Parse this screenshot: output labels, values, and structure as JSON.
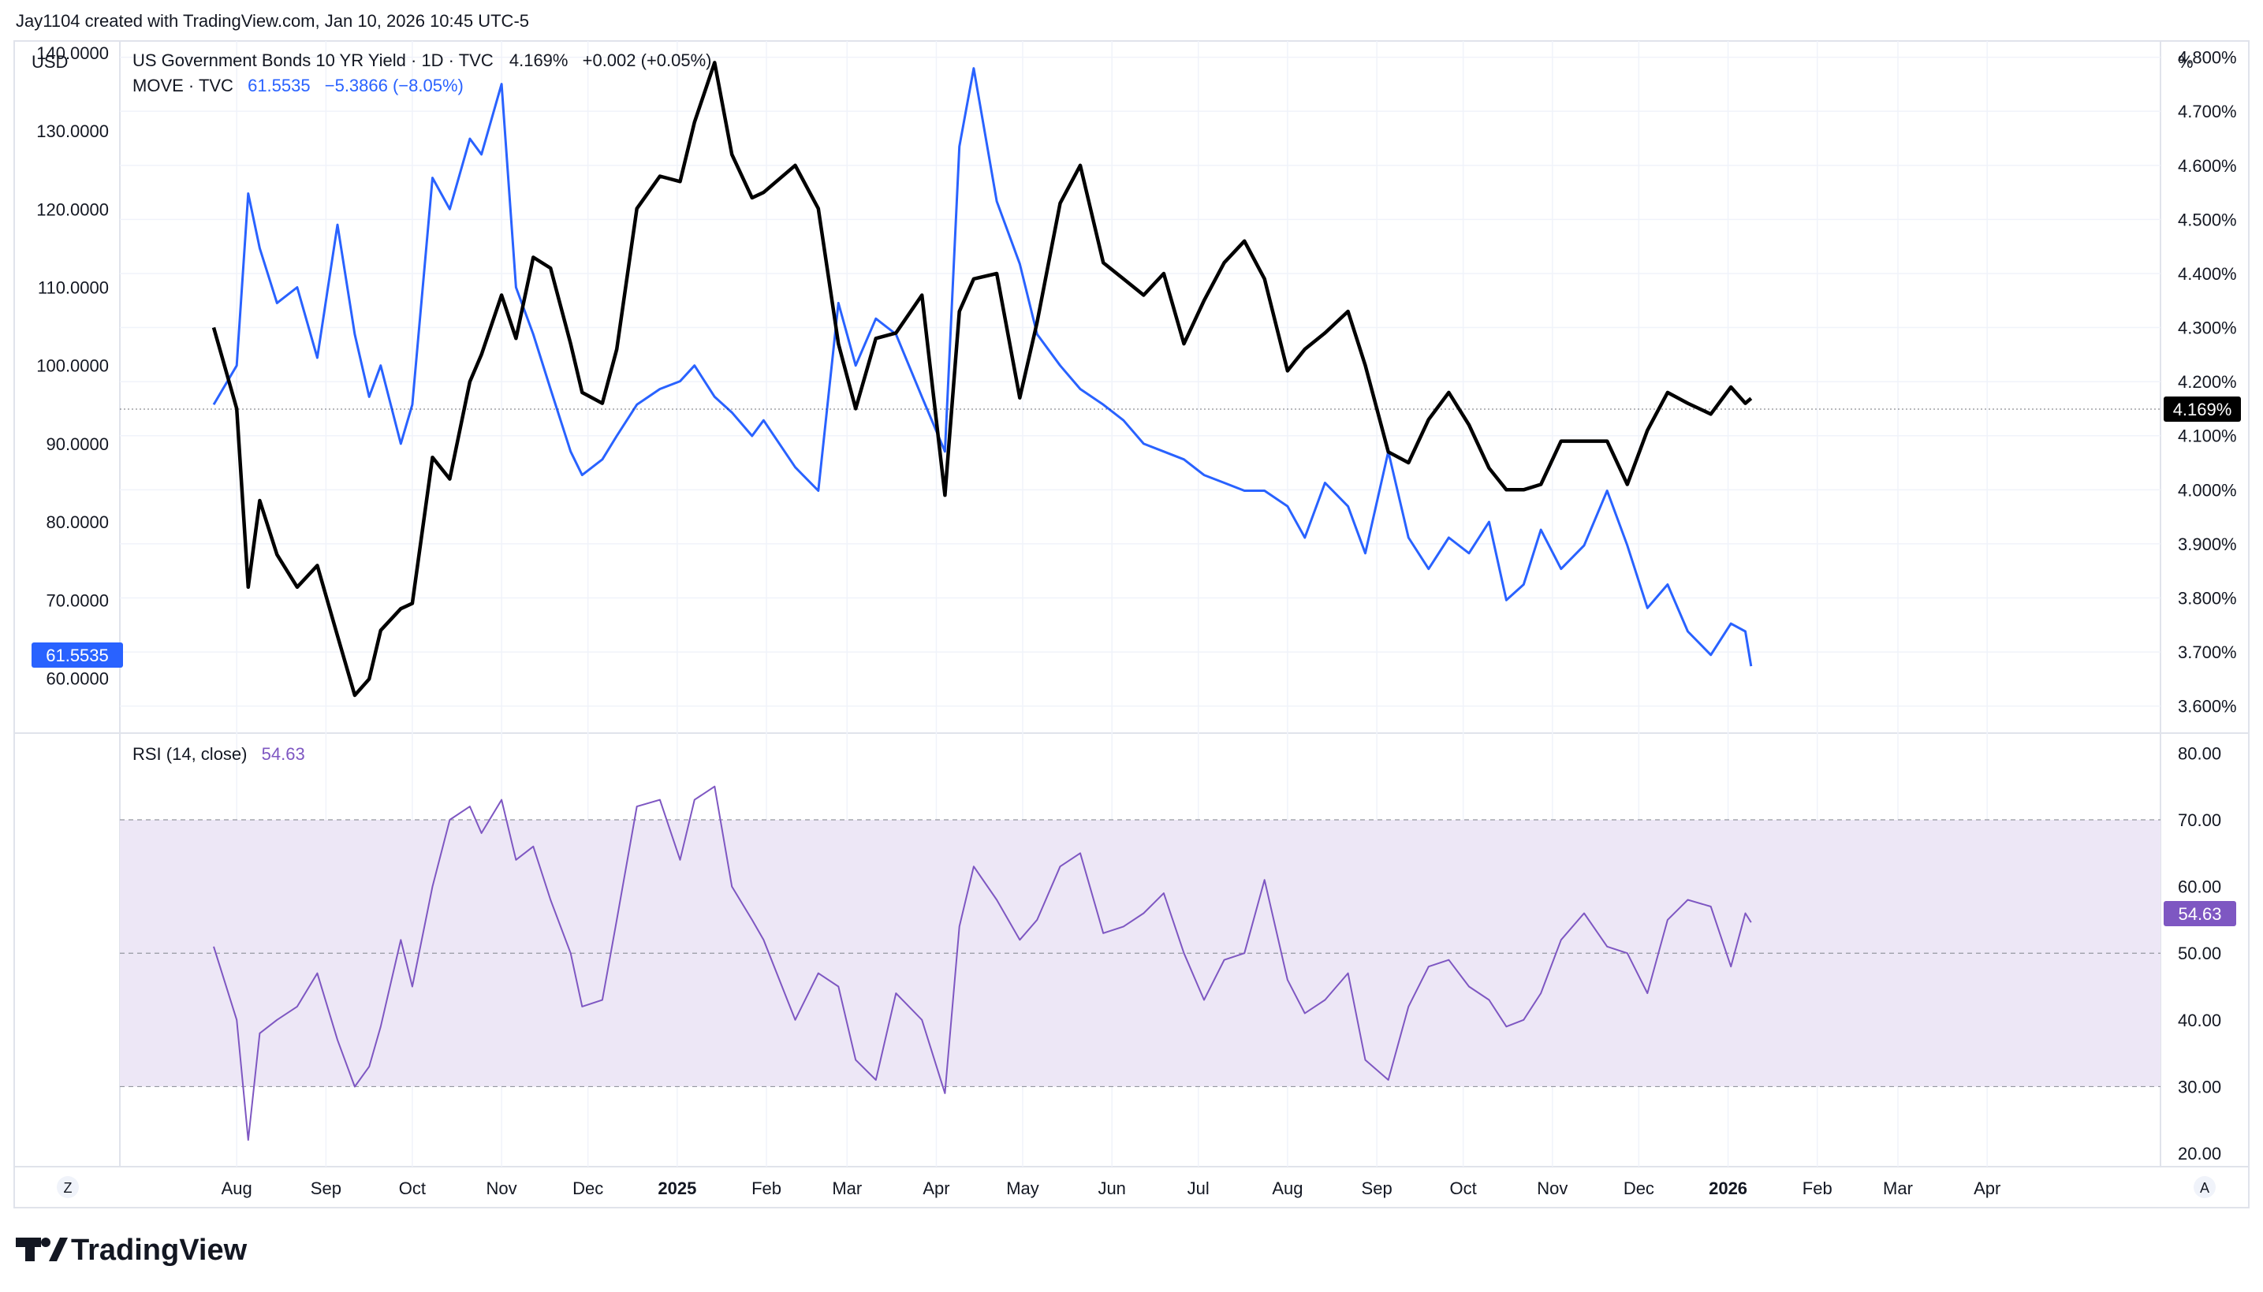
{
  "header": {
    "attribution": "Jay1104 created with TradingView.com, Jan 10, 2026 10:45 UTC-5"
  },
  "left_scale_label": "USD",
  "right_scale_label": "%",
  "legend": {
    "line1": {
      "symbol": "US Government Bonds 10 YR Yield · 1D · TVC",
      "last": "4.169%",
      "change": "+0.002 (+0.05%)"
    },
    "line2": {
      "symbol": "MOVE · TVC",
      "last": "61.5535",
      "change": "−5.3866 (−8.05%)"
    }
  },
  "rsi_legend": {
    "label": "RSI (14, close)",
    "value": "54.63"
  },
  "badges": {
    "move": "61.5535",
    "yield": "4.169%",
    "rsi": "54.63"
  },
  "bottom_buttons": {
    "left": "Z",
    "right": "A"
  },
  "logo_text": "TradingView",
  "colors": {
    "yield": "#000000",
    "move": "#2962ff",
    "rsi": "#7e57c2",
    "rsi_band": "#ede7f6",
    "grid": "#f0f3fa",
    "axis_text": "#131722"
  },
  "chart_data": [
    {
      "type": "line",
      "title": "US Government Bonds 10 YR Yield · 1D · TVC",
      "ylabel": "%",
      "ylim": [
        3.55,
        4.83
      ],
      "y_ticks": [
        "4.800%",
        "4.700%",
        "4.600%",
        "4.500%",
        "4.400%",
        "4.300%",
        "4.200%",
        "4.100%",
        "4.000%",
        "3.900%",
        "3.800%",
        "3.700%",
        "3.600%"
      ],
      "x_ticks": [
        "Aug",
        "Sep",
        "Oct",
        "Nov",
        "Dec",
        "2025",
        "Feb",
        "Mar",
        "Apr",
        "May",
        "Jun",
        "Jul",
        "Aug",
        "Sep",
        "Oct",
        "Nov",
        "Dec",
        "2026",
        "Feb",
        "Mar",
        "Apr"
      ],
      "series": [
        {
          "name": "US Government Bonds 10 YR Yield",
          "x": [
            "2024-07-24",
            "2024-08-01",
            "2024-08-05",
            "2024-08-09",
            "2024-08-15",
            "2024-08-22",
            "2024-08-29",
            "2024-09-05",
            "2024-09-11",
            "2024-09-16",
            "2024-09-20",
            "2024-09-27",
            "2024-10-01",
            "2024-10-08",
            "2024-10-14",
            "2024-10-21",
            "2024-10-25",
            "2024-11-01",
            "2024-11-06",
            "2024-11-12",
            "2024-11-18",
            "2024-11-25",
            "2024-11-29",
            "2024-12-06",
            "2024-12-11",
            "2024-12-18",
            "2024-12-26",
            "2025-01-02",
            "2025-01-07",
            "2025-01-14",
            "2025-01-20",
            "2025-01-27",
            "2025-01-31",
            "2025-02-11",
            "2025-02-19",
            "2025-02-26",
            "2025-03-04",
            "2025-03-11",
            "2025-03-18",
            "2025-03-27",
            "2025-04-04",
            "2025-04-09",
            "2025-04-14",
            "2025-04-22",
            "2025-04-30",
            "2025-05-06",
            "2025-05-14",
            "2025-05-21",
            "2025-05-29",
            "2025-06-05",
            "2025-06-12",
            "2025-06-19",
            "2025-06-26",
            "2025-07-03",
            "2025-07-10",
            "2025-07-17",
            "2025-07-24",
            "2025-08-01",
            "2025-08-07",
            "2025-08-14",
            "2025-08-22",
            "2025-08-28",
            "2025-09-05",
            "2025-09-12",
            "2025-09-19",
            "2025-09-26",
            "2025-10-03",
            "2025-10-10",
            "2025-10-16",
            "2025-10-22",
            "2025-10-28",
            "2025-11-04",
            "2025-11-12",
            "2025-11-20",
            "2025-11-27",
            "2025-12-04",
            "2025-12-11",
            "2025-12-18",
            "2025-12-26",
            "2026-01-02",
            "2026-01-07",
            "2026-01-09"
          ],
          "y": [
            4.3,
            4.15,
            3.82,
            3.98,
            3.88,
            3.82,
            3.86,
            3.73,
            3.62,
            3.65,
            3.74,
            3.78,
            3.79,
            4.06,
            4.02,
            4.2,
            4.25,
            4.36,
            4.28,
            4.43,
            4.41,
            4.27,
            4.18,
            4.16,
            4.26,
            4.52,
            4.58,
            4.57,
            4.68,
            4.79,
            4.62,
            4.54,
            4.55,
            4.6,
            4.52,
            4.27,
            4.15,
            4.28,
            4.29,
            4.36,
            3.99,
            4.33,
            4.39,
            4.4,
            4.17,
            4.31,
            4.53,
            4.6,
            4.42,
            4.39,
            4.36,
            4.4,
            4.27,
            4.35,
            4.42,
            4.46,
            4.39,
            4.22,
            4.26,
            4.29,
            4.33,
            4.23,
            4.07,
            4.05,
            4.13,
            4.18,
            4.12,
            4.04,
            4.0,
            4.0,
            4.01,
            4.09,
            4.09,
            4.09,
            4.01,
            4.11,
            4.18,
            4.16,
            4.14,
            4.19,
            4.16,
            4.169
          ]
        }
      ]
    },
    {
      "type": "line",
      "title": "MOVE · TVC",
      "ylabel": "USD",
      "ylim": [
        53,
        141.5
      ],
      "y_ticks": [
        "140.0000",
        "130.0000",
        "120.0000",
        "110.0000",
        "100.0000",
        "90.0000",
        "80.0000",
        "70.0000",
        "60.0000"
      ],
      "series": [
        {
          "name": "MOVE",
          "x": [
            "2024-07-24",
            "2024-08-01",
            "2024-08-05",
            "2024-08-09",
            "2024-08-15",
            "2024-08-22",
            "2024-08-29",
            "2024-09-05",
            "2024-09-11",
            "2024-09-16",
            "2024-09-20",
            "2024-09-27",
            "2024-10-01",
            "2024-10-08",
            "2024-10-14",
            "2024-10-21",
            "2024-10-25",
            "2024-11-01",
            "2024-11-06",
            "2024-11-12",
            "2024-11-18",
            "2024-11-25",
            "2024-11-29",
            "2024-12-06",
            "2024-12-11",
            "2024-12-18",
            "2024-12-26",
            "2025-01-02",
            "2025-01-07",
            "2025-01-14",
            "2025-01-20",
            "2025-01-27",
            "2025-01-31",
            "2025-02-11",
            "2025-02-19",
            "2025-02-26",
            "2025-03-04",
            "2025-03-11",
            "2025-03-18",
            "2025-03-27",
            "2025-04-04",
            "2025-04-09",
            "2025-04-14",
            "2025-04-22",
            "2025-04-30",
            "2025-05-06",
            "2025-05-14",
            "2025-05-21",
            "2025-05-29",
            "2025-06-05",
            "2025-06-12",
            "2025-06-19",
            "2025-06-26",
            "2025-07-03",
            "2025-07-10",
            "2025-07-17",
            "2025-07-24",
            "2025-08-01",
            "2025-08-07",
            "2025-08-14",
            "2025-08-22",
            "2025-08-28",
            "2025-09-05",
            "2025-09-12",
            "2025-09-19",
            "2025-09-26",
            "2025-10-03",
            "2025-10-10",
            "2025-10-16",
            "2025-10-22",
            "2025-10-28",
            "2025-11-04",
            "2025-11-12",
            "2025-11-20",
            "2025-11-27",
            "2025-12-04",
            "2025-12-11",
            "2025-12-18",
            "2025-12-26",
            "2026-01-02",
            "2026-01-07",
            "2026-01-09"
          ],
          "y": [
            95,
            100,
            122,
            115,
            108,
            110,
            101,
            118,
            104,
            96,
            100,
            90,
            95,
            124,
            120,
            129,
            127,
            136,
            110,
            104,
            97,
            89,
            86,
            88,
            91,
            95,
            97,
            98,
            100,
            96,
            94,
            91,
            93,
            87,
            84,
            108,
            100,
            106,
            104,
            96,
            89,
            128,
            138,
            121,
            113,
            104,
            100,
            97,
            95,
            93,
            90,
            89,
            88,
            86,
            85,
            84,
            84,
            82,
            78,
            85,
            82,
            76,
            89,
            78,
            74,
            78,
            76,
            80,
            70,
            72,
            79,
            74,
            77,
            84,
            77,
            69,
            72,
            66,
            63,
            67,
            66,
            61.5535
          ]
        }
      ]
    },
    {
      "type": "line",
      "title": "RSI (14, close)",
      "ylim": [
        18,
        83
      ],
      "y_ticks": [
        "80.00",
        "70.00",
        "60.00",
        "50.00",
        "40.00",
        "30.00",
        "20.00"
      ],
      "bands": {
        "upper": 70,
        "middle": 50,
        "lower": 30
      },
      "series": [
        {
          "name": "RSI (14, close)",
          "x": [
            "2024-07-24",
            "2024-08-01",
            "2024-08-05",
            "2024-08-09",
            "2024-08-15",
            "2024-08-22",
            "2024-08-29",
            "2024-09-05",
            "2024-09-11",
            "2024-09-16",
            "2024-09-20",
            "2024-09-27",
            "2024-10-01",
            "2024-10-08",
            "2024-10-14",
            "2024-10-21",
            "2024-10-25",
            "2024-11-01",
            "2024-11-06",
            "2024-11-12",
            "2024-11-18",
            "2024-11-25",
            "2024-11-29",
            "2024-12-06",
            "2024-12-11",
            "2024-12-18",
            "2024-12-26",
            "2025-01-02",
            "2025-01-07",
            "2025-01-14",
            "2025-01-20",
            "2025-01-27",
            "2025-01-31",
            "2025-02-11",
            "2025-02-19",
            "2025-02-26",
            "2025-03-04",
            "2025-03-11",
            "2025-03-18",
            "2025-03-27",
            "2025-04-04",
            "2025-04-09",
            "2025-04-14",
            "2025-04-22",
            "2025-04-30",
            "2025-05-06",
            "2025-05-14",
            "2025-05-21",
            "2025-05-29",
            "2025-06-05",
            "2025-06-12",
            "2025-06-19",
            "2025-06-26",
            "2025-07-03",
            "2025-07-10",
            "2025-07-17",
            "2025-07-24",
            "2025-08-01",
            "2025-08-07",
            "2025-08-14",
            "2025-08-22",
            "2025-08-28",
            "2025-09-05",
            "2025-09-12",
            "2025-09-19",
            "2025-09-26",
            "2025-10-03",
            "2025-10-10",
            "2025-10-16",
            "2025-10-22",
            "2025-10-28",
            "2025-11-04",
            "2025-11-12",
            "2025-11-20",
            "2025-11-27",
            "2025-12-04",
            "2025-12-11",
            "2025-12-18",
            "2025-12-26",
            "2026-01-02",
            "2026-01-07",
            "2026-01-09"
          ],
          "y": [
            51,
            40,
            22,
            38,
            40,
            42,
            47,
            37,
            30,
            33,
            39,
            52,
            45,
            60,
            70,
            72,
            68,
            73,
            64,
            66,
            58,
            50,
            42,
            43,
            55,
            72,
            73,
            64,
            73,
            75,
            60,
            55,
            52,
            40,
            47,
            45,
            34,
            31,
            44,
            40,
            29,
            54,
            63,
            58,
            52,
            55,
            63,
            65,
            53,
            54,
            56,
            59,
            50,
            43,
            49,
            50,
            61,
            46,
            41,
            43,
            47,
            34,
            31,
            42,
            48,
            49,
            45,
            43,
            39,
            40,
            44,
            52,
            56,
            51,
            50,
            44,
            55,
            58,
            57,
            48,
            56,
            54.63
          ]
        }
      ]
    }
  ]
}
